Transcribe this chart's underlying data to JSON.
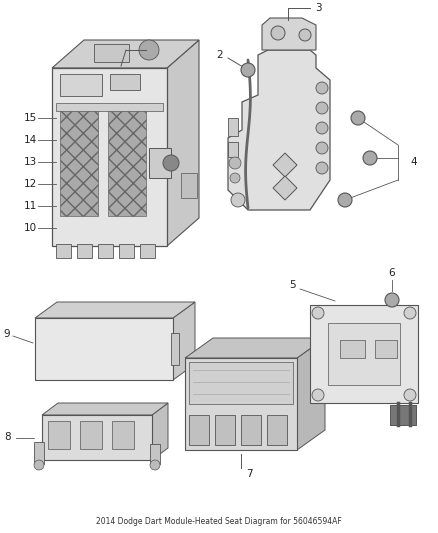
{
  "title": "2014 Dodge Dart Module-Heated Seat Diagram for 56046594AF",
  "bg_color": "#ffffff",
  "line_color": "#555555",
  "label_fontsize": 7.5,
  "callout_fontsize": 7.5
}
